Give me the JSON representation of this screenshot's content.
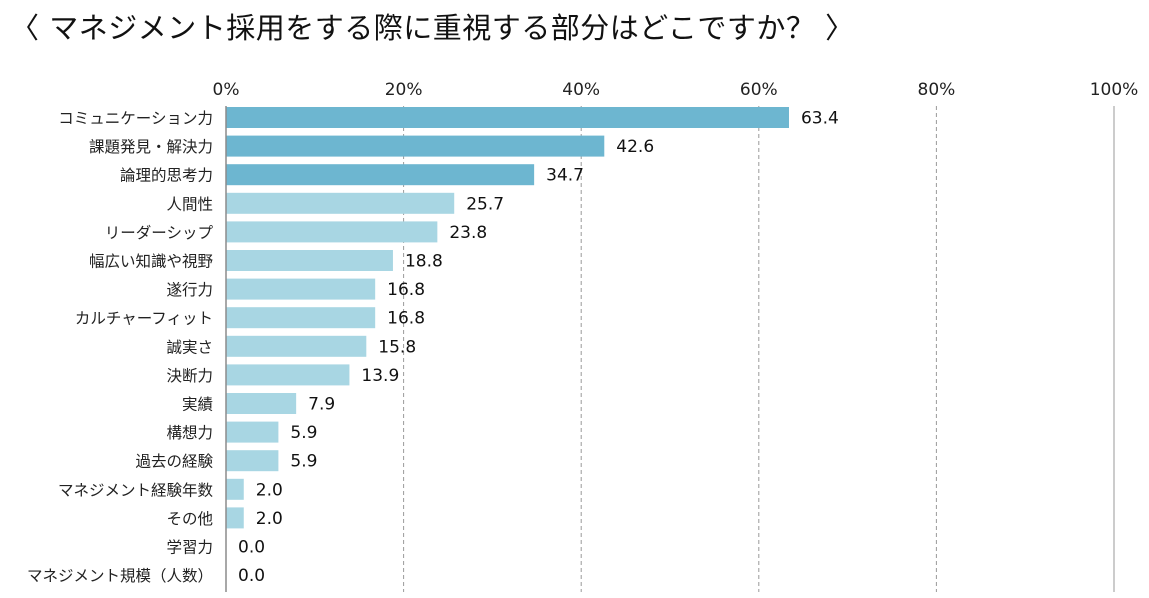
{
  "header": {
    "title": "〈 マネジメント採用をする際に重視する部分はどこですか？ 〉"
  },
  "colors": {
    "top_bar": "#6db6d0",
    "bar": "#a8d6e3",
    "grid": "#9a9a9a",
    "axis": "#8c8c8c"
  },
  "chart_data": {
    "type": "bar",
    "orientation": "horizontal",
    "categories": [
      "コミュニケーション力",
      "課題発見・解決力",
      "論理的思考力",
      "人間性",
      "リーダーシップ",
      "幅広い知識や視野",
      "遂行力",
      "カルチャーフィット",
      "誠実さ",
      "決断力",
      "実績",
      "構想力",
      "過去の経験",
      "マネジメント経験年数",
      "その他",
      "学習力",
      "マネジメント規模（人数）"
    ],
    "values": [
      63.4,
      42.6,
      34.7,
      25.7,
      23.8,
      18.8,
      16.8,
      16.8,
      15.8,
      13.9,
      7.9,
      5.9,
      5.9,
      2.0,
      2.0,
      0.0,
      0.0
    ],
    "value_labels": [
      "63.4",
      "42.6",
      "34.7",
      "25.7",
      "23.8",
      "18.8",
      "16.8",
      "16.8",
      "15.8",
      "13.9",
      "7.9",
      "5.9",
      "5.9",
      "2.0",
      "2.0",
      "0.0",
      "0.0"
    ],
    "highlight_top": 3,
    "xlim": [
      0,
      100
    ],
    "x_ticks": [
      0,
      20,
      40,
      60,
      80,
      100
    ],
    "x_tick_labels": [
      "0%",
      "20%",
      "40%",
      "60%",
      "80%",
      "100%"
    ],
    "grid": true,
    "axis_position": "top"
  }
}
